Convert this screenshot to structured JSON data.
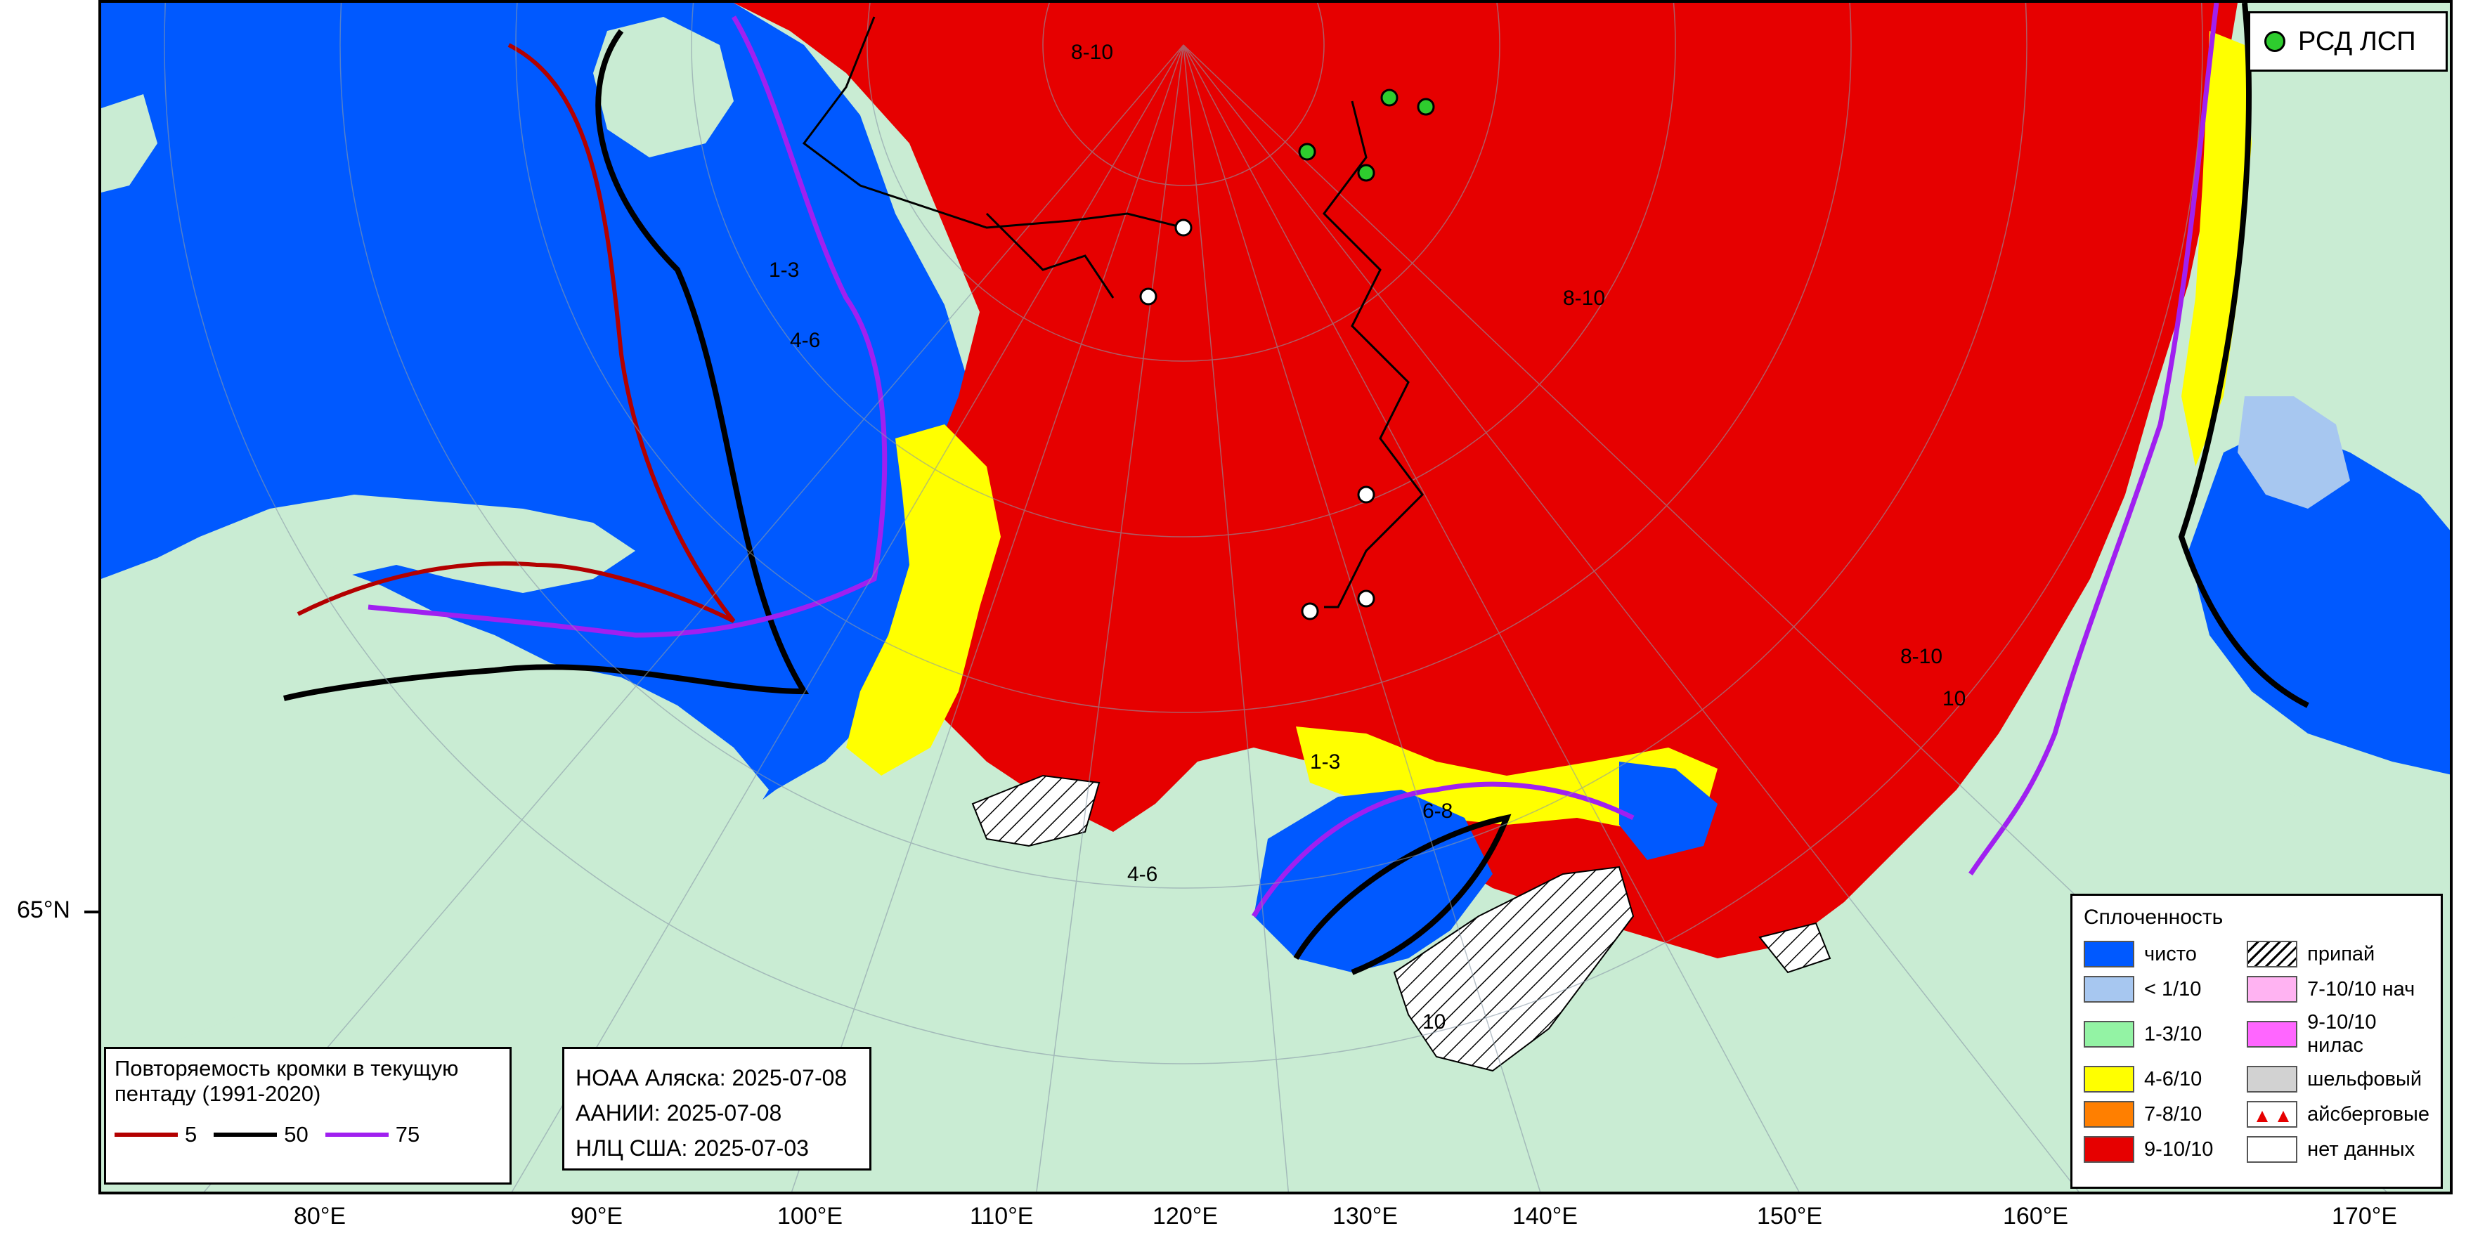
{
  "map": {
    "region": "Ice concentration map, Laptev & East Siberian seas",
    "lat_labels": [
      "65°N"
    ],
    "lon_labels": [
      "80°E",
      "90°E",
      "100°E",
      "110°E",
      "120°E",
      "130°E",
      "140°E",
      "150°E",
      "160°E",
      "170°E"
    ]
  },
  "colors": {
    "land": "#c9ecd3",
    "open_water": "#0059ff",
    "lt_1_10": "#a7c7f0",
    "c1_3": "#93f3a4",
    "c4_6": "#ffff00",
    "c7_8": "#ff7f00",
    "c9_10": "#e60000",
    "fast_ice": "#ffffff",
    "c7_10_new": "#ffb3f2",
    "c9_10_nilas": "#ff66ff",
    "shelf": "#d2d2d2",
    "no_data": "#ffffff",
    "freq5": "#b30000",
    "freq50": "#000000",
    "freq75": "#a020f0",
    "station": "#2ecc2e"
  },
  "stations_legend": {
    "label": "РСД ЛСП"
  },
  "concentration_legend": {
    "title": "Сплоченность",
    "items": [
      {
        "key": "open_water",
        "label": "чисто"
      },
      {
        "key": "fast_ice",
        "label": "припай"
      },
      {
        "key": "lt_1_10",
        "label": "< 1/10"
      },
      {
        "key": "c7_10_new",
        "label": "7-10/10 нач"
      },
      {
        "key": "c1_3",
        "label": "1-3/10"
      },
      {
        "key": "c9_10_nilas",
        "label": "9-10/10 нилас"
      },
      {
        "key": "c4_6",
        "label": "4-6/10"
      },
      {
        "key": "shelf",
        "label": "шельфовый"
      },
      {
        "key": "c7_8",
        "label": "7-8/10"
      },
      {
        "key": "icebergs",
        "label": "айсберговые"
      },
      {
        "key": "c9_10",
        "label": "9-10/10"
      },
      {
        "key": "no_data",
        "label": "нет данных"
      }
    ]
  },
  "frequency_legend": {
    "title": "Повторяемость кромки в текущую пентаду (1991-2020)",
    "lines": [
      {
        "value": "5",
        "color": "#b30000"
      },
      {
        "value": "50",
        "color": "#000000"
      },
      {
        "value": "75",
        "color": "#a020f0"
      }
    ]
  },
  "sources": [
    "НОАА Аляска: 2025-07-08",
    "ААНИИ: 2025-07-08",
    "НЛЦ США: 2025-07-03"
  ],
  "zone_labels": [
    "8-10",
    "1-3",
    "4-6",
    "6-8",
    "10",
    "1-3",
    "8-10",
    "1-3",
    "4-6",
    "8-10",
    "10"
  ]
}
